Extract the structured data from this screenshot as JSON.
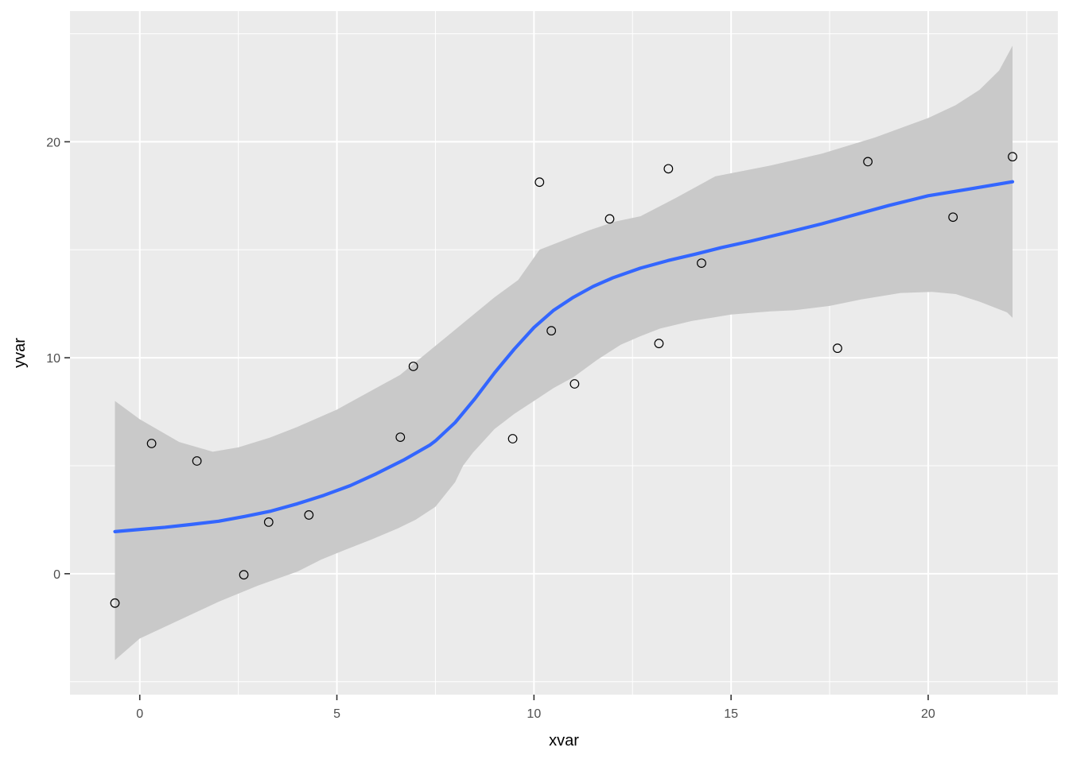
{
  "chart_data": {
    "type": "scatter",
    "title": "",
    "xlabel": "xvar",
    "ylabel": "yvar",
    "legend_position": "none",
    "grid": true,
    "xlim": [
      -1.77,
      23.29
    ],
    "ylim": [
      -5.6,
      26.05
    ],
    "x_ticks": [
      0,
      5,
      10,
      15,
      20
    ],
    "y_ticks": [
      0,
      10,
      20
    ],
    "x_minor_ticks": [
      2.5,
      7.5,
      12.5,
      17.5,
      22.5
    ],
    "y_minor_ticks": [
      -5,
      5,
      15,
      25
    ],
    "points": [
      [
        -0.63,
        -1.36
      ],
      [
        0.3,
        6.03
      ],
      [
        1.45,
        5.22
      ],
      [
        2.64,
        -0.05
      ],
      [
        3.27,
        2.39
      ],
      [
        4.29,
        2.72
      ],
      [
        6.61,
        6.32
      ],
      [
        6.94,
        9.6
      ],
      [
        9.46,
        6.25
      ],
      [
        10.14,
        18.13
      ],
      [
        10.44,
        11.25
      ],
      [
        11.03,
        8.79
      ],
      [
        11.92,
        16.43
      ],
      [
        13.17,
        10.66
      ],
      [
        13.41,
        18.75
      ],
      [
        14.25,
        14.38
      ],
      [
        17.7,
        10.44
      ],
      [
        18.47,
        19.08
      ],
      [
        20.63,
        16.51
      ],
      [
        22.14,
        19.31
      ]
    ],
    "smooth_line": [
      [
        -0.63,
        1.95
      ],
      [
        0,
        2.05
      ],
      [
        0.64,
        2.15
      ],
      [
        1.3,
        2.28
      ],
      [
        2,
        2.43
      ],
      [
        2.66,
        2.65
      ],
      [
        3.33,
        2.9
      ],
      [
        4,
        3.24
      ],
      [
        4.67,
        3.63
      ],
      [
        5.34,
        4.08
      ],
      [
        6,
        4.63
      ],
      [
        6.69,
        5.26
      ],
      [
        7.36,
        5.96
      ],
      [
        7.5,
        6.15
      ],
      [
        8,
        7.0
      ],
      [
        8.5,
        8.1
      ],
      [
        9,
        9.3
      ],
      [
        9.5,
        10.4
      ],
      [
        10,
        11.4
      ],
      [
        10.5,
        12.2
      ],
      [
        11,
        12.8
      ],
      [
        11.5,
        13.3
      ],
      [
        12,
        13.7
      ],
      [
        12.7,
        14.15
      ],
      [
        13.4,
        14.5
      ],
      [
        14.1,
        14.8
      ],
      [
        14.75,
        15.1
      ],
      [
        15.5,
        15.4
      ],
      [
        16.3,
        15.75
      ],
      [
        17.3,
        16.2
      ],
      [
        18,
        16.55
      ],
      [
        19,
        17.05
      ],
      [
        20,
        17.5
      ],
      [
        21,
        17.8
      ],
      [
        22.14,
        18.15
      ]
    ],
    "band_upper": [
      [
        -0.63,
        8.0
      ],
      [
        0,
        7.15
      ],
      [
        1,
        6.1
      ],
      [
        1.85,
        5.65
      ],
      [
        2.5,
        5.85
      ],
      [
        3.3,
        6.3
      ],
      [
        4,
        6.8
      ],
      [
        5,
        7.6
      ],
      [
        6,
        8.6
      ],
      [
        6.6,
        9.2
      ],
      [
        7.2,
        10.1
      ],
      [
        7.8,
        11.0
      ],
      [
        8.4,
        11.9
      ],
      [
        9,
        12.8
      ],
      [
        9.6,
        13.6
      ],
      [
        10.14,
        15.0
      ],
      [
        10.7,
        15.4
      ],
      [
        11.4,
        15.9
      ],
      [
        12.05,
        16.3
      ],
      [
        12.7,
        16.55
      ],
      [
        13.6,
        17.4
      ],
      [
        14.6,
        18.4
      ],
      [
        16,
        18.9
      ],
      [
        17.3,
        19.45
      ],
      [
        18.65,
        20.2
      ],
      [
        20,
        21.1
      ],
      [
        20.7,
        21.7
      ],
      [
        21.3,
        22.4
      ],
      [
        21.8,
        23.3
      ],
      [
        22.14,
        24.45
      ]
    ],
    "band_lower": [
      [
        -0.63,
        -4.0
      ],
      [
        0,
        -3.0
      ],
      [
        1,
        -2.15
      ],
      [
        2,
        -1.3
      ],
      [
        3,
        -0.55
      ],
      [
        4,
        0.1
      ],
      [
        4.6,
        0.65
      ],
      [
        5.2,
        1.1
      ],
      [
        5.9,
        1.6
      ],
      [
        6.55,
        2.1
      ],
      [
        7,
        2.5
      ],
      [
        7.5,
        3.1
      ],
      [
        8,
        4.24
      ],
      [
        8.2,
        5.0
      ],
      [
        8.45,
        5.6
      ],
      [
        8.8,
        6.3
      ],
      [
        9,
        6.7
      ],
      [
        9.5,
        7.4
      ],
      [
        10,
        8.0
      ],
      [
        10.5,
        8.6
      ],
      [
        11,
        9.1
      ],
      [
        11.6,
        9.9
      ],
      [
        12.2,
        10.6
      ],
      [
        12.7,
        11.0
      ],
      [
        13.2,
        11.35
      ],
      [
        14,
        11.7
      ],
      [
        15,
        12.0
      ],
      [
        16,
        12.15
      ],
      [
        16.6,
        12.2
      ],
      [
        17.5,
        12.4
      ],
      [
        18.3,
        12.7
      ],
      [
        19.3,
        13.0
      ],
      [
        20.1,
        13.05
      ],
      [
        20.7,
        12.95
      ],
      [
        21.3,
        12.6
      ],
      [
        22,
        12.1
      ],
      [
        22.14,
        11.85
      ]
    ]
  },
  "style": {
    "panel_bg": "#EBEBEB",
    "grid_color": "#FFFFFF",
    "band_fill": "#C9C9C9",
    "line_color": "#3366FF",
    "point_stroke": "#000000",
    "tick_label_color": "#4D4D4D",
    "axis_title_color": "#000000",
    "tick_mark_color": "#333333"
  }
}
